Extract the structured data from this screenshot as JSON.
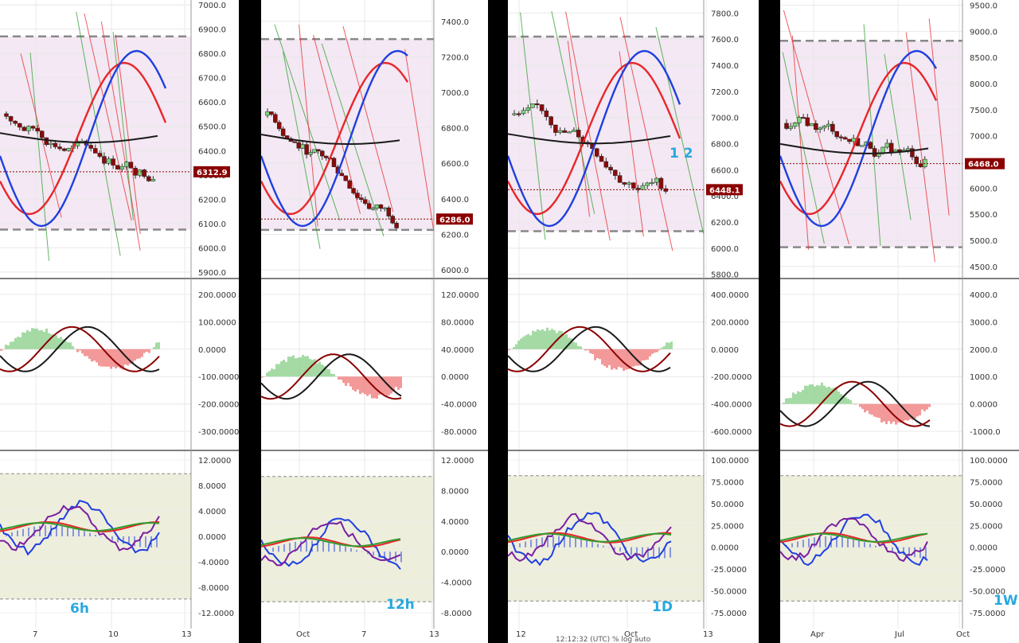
{
  "colors": {
    "bg": "#ffffff",
    "grid": "#e8e8e8",
    "separator": "#555555",
    "range_fill": "#f3e8f3",
    "osc_fill": "#eeeedd",
    "dash": "#888888",
    "red": "#e8262a",
    "blue": "#1f3fe0",
    "black": "#1a1a1a",
    "dark_red": "#8b0000",
    "green": "#2e9e2e",
    "purple": "#7a1fa0",
    "cyan": "#29a8e0",
    "candle_up": "#7cd67c",
    "candle_down": "#8b0a0a",
    "hist_pos": "#8fd18f",
    "hist_neg": "#f08080"
  },
  "footer_text": "12:12:32 (UTC)   %   log   auto",
  "chart_data": [
    {
      "type": "line",
      "timeframe": "6h",
      "price_axis": [
        7000.0,
        6900.0,
        6800.0,
        6700.0,
        6600.0,
        6500.0,
        6400.0,
        6300.0,
        6200.0,
        6100.0,
        6000.0,
        5900.0
      ],
      "price_axis_labels": [
        "7000.0",
        "6900.0",
        "6800.0",
        "6700.0",
        "6600.0",
        "6500.0",
        "6400.0",
        "6300.0",
        "6200.0",
        "6100.0",
        "6000.0",
        "5900.0"
      ],
      "ylim": [
        5880,
        7020
      ],
      "last_price": "6312.9",
      "range_top": 6870,
      "range_bottom": 6075,
      "macd_axis": [
        "200.0000",
        "100.0000",
        "0.0000",
        "-100.0000",
        "-200.0000",
        "-300.0000"
      ],
      "macd_values": [
        200,
        100,
        0,
        -100,
        -200,
        -300
      ],
      "osc_axis": [
        "12.0000",
        "8.0000",
        "4.0000",
        "0.0000",
        "-4.0000",
        "-8.0000",
        "-12.0000"
      ],
      "osc_values": [
        12,
        8,
        4,
        0,
        -4,
        -8,
        -12
      ],
      "x_labels": [
        "7",
        "10",
        "13"
      ]
    },
    {
      "type": "line",
      "timeframe": "12h",
      "price_axis": [
        7400.0,
        7200.0,
        7000.0,
        6800.0,
        6600.0,
        6400.0,
        6200.0,
        6000.0
      ],
      "price_axis_labels": [
        "7400.0",
        "7200.0",
        "7000.0",
        "6800.0",
        "6600.0",
        "6400.0",
        "6200.0",
        "6000.0"
      ],
      "ylim": [
        5960,
        7520
      ],
      "last_price": "6286.0",
      "range_top": 7300,
      "range_bottom": 6225,
      "macd_axis": [
        "120.0000",
        "80.0000",
        "40.0000",
        "0.0000",
        "-40.0000",
        "-80.0000"
      ],
      "macd_values": [
        120,
        80,
        40,
        0,
        -40,
        -80
      ],
      "osc_axis": [
        "12.0000",
        "8.0000",
        "4.0000",
        "0.0000",
        "-4.0000",
        "-8.0000"
      ],
      "osc_values": [
        12,
        8,
        4,
        0,
        -4,
        -8
      ],
      "x_labels": [
        "Oct",
        "7",
        "13"
      ]
    },
    {
      "type": "line",
      "timeframe": "1D",
      "price_axis": [
        7800.0,
        7600.0,
        7400.0,
        7200.0,
        7000.0,
        6800.0,
        6600.0,
        6400.0,
        6200.0,
        6000.0,
        5800.0
      ],
      "price_axis_labels": [
        "7800.0",
        "7600.0",
        "7400.0",
        "7200.0",
        "7000.0",
        "6800.0",
        "6600.0",
        "6400.0",
        "6200.0",
        "6000.0",
        "5800.0"
      ],
      "ylim": [
        5780,
        7900
      ],
      "last_price": "6448.1",
      "range_top": 7620,
      "range_bottom": 6130,
      "macd_axis": [
        "400.0000",
        "200.0000",
        "0.0000",
        "-200.0000",
        "-400.0000",
        "-600.0000"
      ],
      "macd_values": [
        400,
        200,
        0,
        -200,
        -400,
        -600
      ],
      "osc_axis": [
        "100.0000",
        "75.0000",
        "50.0000",
        "25.0000",
        "0.0000",
        "-25.0000",
        "-50.0000",
        "-75.0000"
      ],
      "osc_values": [
        100,
        75,
        50,
        25,
        0,
        -25,
        -50,
        -75
      ],
      "x_labels": [
        "12",
        "Oct",
        "13"
      ],
      "annotation": "1 2"
    },
    {
      "type": "line",
      "timeframe": "1W",
      "price_axis": [
        9500.0,
        9000.0,
        8500.0,
        8000.0,
        7500.0,
        7000.0,
        6500.0,
        6000.0,
        5500.0,
        5000.0,
        4500.0
      ],
      "price_axis_labels": [
        "9500.0",
        "9000.0",
        "8500.0",
        "8000.0",
        "7500.0",
        "7000.0",
        "6500.0",
        "6000.0",
        "5500.0",
        "5000.0",
        "4500.0"
      ],
      "ylim": [
        4300,
        9600
      ],
      "last_price": "6468.0",
      "range_top": 8820,
      "range_bottom": 4870,
      "macd_axis": [
        "4000.0",
        "3000.0",
        "2000.0",
        "1000.0",
        "0.0000",
        "-1000.0"
      ],
      "macd_values": [
        4000,
        3000,
        2000,
        1000,
        0,
        -1000
      ],
      "osc_axis": [
        "100.0000",
        "75.0000",
        "50.0000",
        "25.0000",
        "0.0000",
        "-25.0000",
        "-50.0000",
        "-75.0000"
      ],
      "osc_values": [
        100,
        75,
        50,
        25,
        0,
        -25,
        -50,
        -75
      ],
      "x_labels": [
        "Apr",
        "Jul",
        "Oct"
      ]
    }
  ]
}
